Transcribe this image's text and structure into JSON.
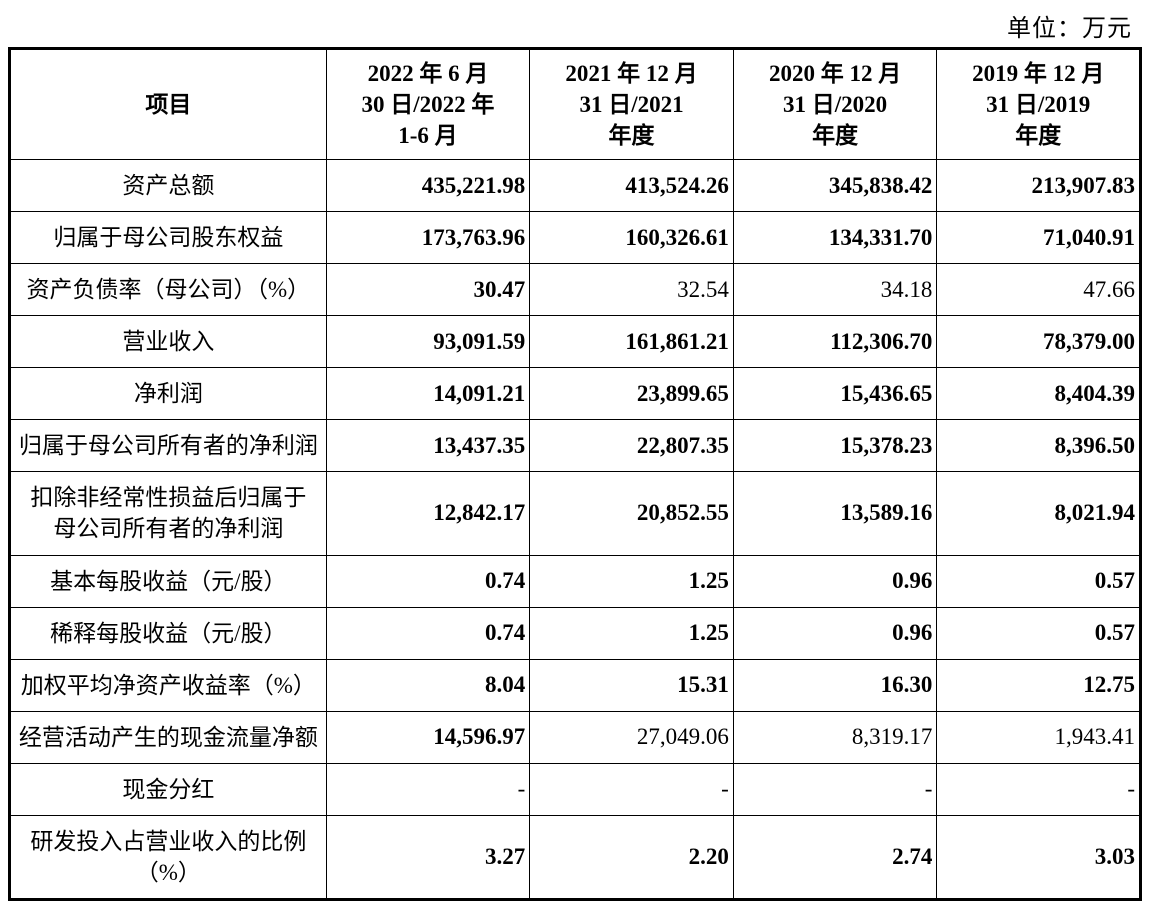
{
  "unit_label": "单位：万元",
  "table": {
    "type": "table",
    "background_color": "#ffffff",
    "border_color": "#000000",
    "text_color": "#000000",
    "font_size_pt": 17,
    "header_font_weight": "bold",
    "columns": [
      {
        "key": "item",
        "label": "项目",
        "align": "center",
        "width_pct": 28
      },
      {
        "key": "p1",
        "label": "2022 年 6 月\n30 日/2022 年\n1-6 月",
        "align": "right",
        "width_pct": 18
      },
      {
        "key": "p2",
        "label": "2021 年 12 月\n31 日/2021\n年度",
        "align": "right",
        "width_pct": 18
      },
      {
        "key": "p3",
        "label": "2020 年 12 月\n31 日/2020\n年度",
        "align": "right",
        "width_pct": 18
      },
      {
        "key": "p4",
        "label": "2019 年 12 月\n31 日/2019\n年度",
        "align": "right",
        "width_pct": 18
      }
    ],
    "rows": [
      {
        "label": "资产总额",
        "v": [
          "435,221.98",
          "413,524.26",
          "345,838.42",
          "213,907.83"
        ],
        "bold": [
          true,
          true,
          true,
          true
        ]
      },
      {
        "label": "归属于母公司股东权益",
        "v": [
          "173,763.96",
          "160,326.61",
          "134,331.70",
          "71,040.91"
        ],
        "bold": [
          true,
          true,
          true,
          true
        ]
      },
      {
        "label": "资产负债率（母公司）（%）",
        "v": [
          "30.47",
          "32.54",
          "34.18",
          "47.66"
        ],
        "bold": [
          true,
          false,
          false,
          false
        ]
      },
      {
        "label": "营业收入",
        "v": [
          "93,091.59",
          "161,861.21",
          "112,306.70",
          "78,379.00"
        ],
        "bold": [
          true,
          true,
          true,
          true
        ]
      },
      {
        "label": "净利润",
        "v": [
          "14,091.21",
          "23,899.65",
          "15,436.65",
          "8,404.39"
        ],
        "bold": [
          true,
          true,
          true,
          true
        ]
      },
      {
        "label": "归属于母公司所有者的净利润",
        "v": [
          "13,437.35",
          "22,807.35",
          "15,378.23",
          "8,396.50"
        ],
        "bold": [
          true,
          true,
          true,
          true
        ]
      },
      {
        "label": "扣除非经常性损益后归属于\n母公司所有者的净利润",
        "v": [
          "12,842.17",
          "20,852.55",
          "13,589.16",
          "8,021.94"
        ],
        "bold": [
          true,
          true,
          true,
          true
        ]
      },
      {
        "label": "基本每股收益（元/股）",
        "v": [
          "0.74",
          "1.25",
          "0.96",
          "0.57"
        ],
        "bold": [
          true,
          true,
          true,
          true
        ]
      },
      {
        "label": "稀释每股收益（元/股）",
        "v": [
          "0.74",
          "1.25",
          "0.96",
          "0.57"
        ],
        "bold": [
          true,
          true,
          true,
          true
        ]
      },
      {
        "label": "加权平均净资产收益率（%）",
        "v": [
          "8.04",
          "15.31",
          "16.30",
          "12.75"
        ],
        "bold": [
          true,
          true,
          true,
          true
        ]
      },
      {
        "label": "经营活动产生的现金流量净额",
        "v": [
          "14,596.97",
          "27,049.06",
          "8,319.17",
          "1,943.41"
        ],
        "bold": [
          true,
          false,
          false,
          false
        ]
      },
      {
        "label": "现金分红",
        "v": [
          "-",
          "-",
          "-",
          "-"
        ],
        "bold": [
          false,
          false,
          false,
          false
        ]
      },
      {
        "label": "研发投入占营业收入的比例\n（%）",
        "v": [
          "3.27",
          "2.20",
          "2.74",
          "3.03"
        ],
        "bold": [
          true,
          true,
          true,
          true
        ]
      }
    ]
  }
}
